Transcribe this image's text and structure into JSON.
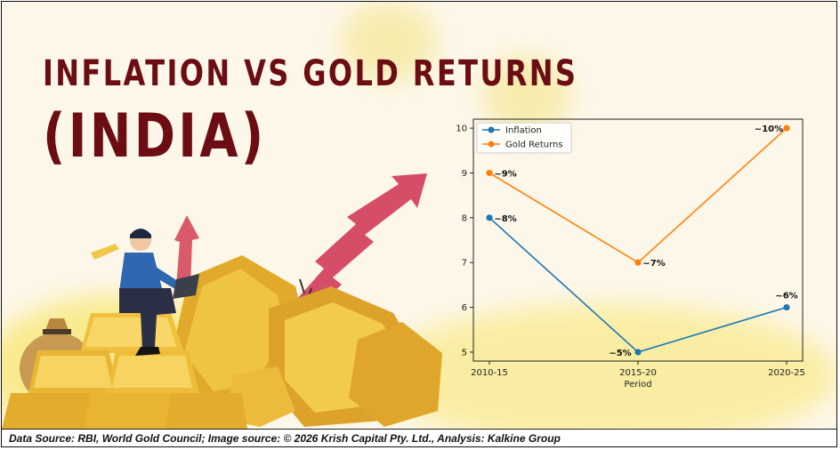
{
  "title": {
    "line1": "INFLATION VS GOLD RETURNS",
    "line2": "(INDIA)"
  },
  "footer_text": "Data Source: RBI, World Gold Council; Image source: © 2026 Krish Capital Pty. Ltd., Analysis: Kalkine Group",
  "colors": {
    "title": "#6b0d12",
    "inflation": "#1f77b4",
    "gold_returns": "#ff7f0e",
    "gold": "#e9b62c",
    "arrow": "#d23a5a"
  },
  "chart_data": {
    "type": "line",
    "title": "",
    "xlabel": "Period",
    "ylabel": "",
    "categories": [
      "2010-15",
      "2015-20",
      "2020-25"
    ],
    "ylim": [
      4.8,
      10.2
    ],
    "yticks": [
      5,
      6,
      7,
      8,
      9,
      10
    ],
    "legend_position": "top-left",
    "grid": false,
    "series": [
      {
        "name": "Inflation",
        "values": [
          8,
          5,
          6
        ],
        "color": "#1f77b4",
        "labels": [
          "~8%",
          "~5%",
          "~6%"
        ]
      },
      {
        "name": "Gold Returns",
        "values": [
          9,
          7,
          10
        ],
        "color": "#ff7f0e",
        "labels": [
          "~9%",
          "~7%",
          "~10%"
        ]
      }
    ]
  }
}
